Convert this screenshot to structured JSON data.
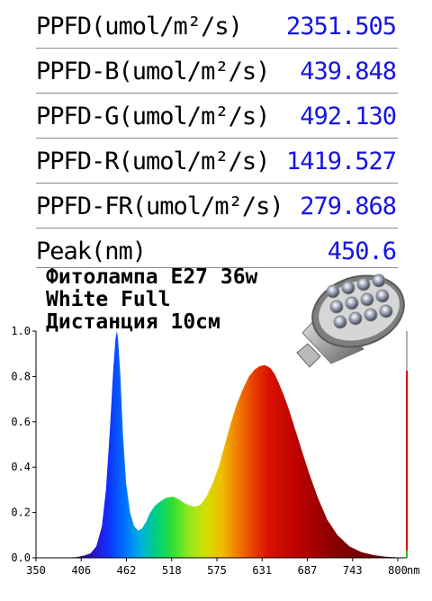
{
  "metrics": [
    {
      "label": "PPFD(umol/m²/s)",
      "value": "2351.505"
    },
    {
      "label": "PPFD-B(umol/m²/s)",
      "value": "439.848"
    },
    {
      "label": "PPFD-G(umol/m²/s)",
      "value": "492.130"
    },
    {
      "label": "PPFD-R(umol/m²/s)",
      "value": "1419.527"
    },
    {
      "label": "PPFD-FR(umol/m²/s)",
      "value": "279.868"
    },
    {
      "label": "Peak(nm)",
      "value": "450.6"
    }
  ],
  "caption": {
    "line1": "Фитолампа E27 36w",
    "line2": "White Full",
    "line3": "Дистанция 10см"
  },
  "lamp_image": {
    "icon": "par-led-bulb-icon",
    "led_count": 12
  },
  "colors": {
    "value_text": "#1414e6",
    "right_axis_top": "#b4b4b4",
    "right_axis_bottom": "#e00000",
    "end_marker": "#20c020"
  },
  "chart_data": {
    "type": "area",
    "xlabel": "",
    "x_unit": "nm",
    "ylabel": "",
    "xlim": [
      350,
      800
    ],
    "ylim": [
      0,
      1.0
    ],
    "x_ticks": [
      "350",
      "406",
      "462",
      "518",
      "575",
      "631",
      "687",
      "743",
      "800"
    ],
    "y_ticks": [
      "0.0",
      "0.2",
      "0.4",
      "0.6",
      "0.8",
      "1.0"
    ],
    "fill": "visible-spectrum-gradient",
    "x": [
      350,
      380,
      400,
      410,
      418,
      425,
      432,
      437,
      442,
      446,
      449,
      450.6,
      452,
      455,
      458,
      462,
      467,
      472,
      477,
      482,
      487,
      492,
      498,
      505,
      512,
      520,
      527,
      535,
      542,
      548,
      555,
      562,
      570,
      578,
      585,
      592,
      600,
      608,
      615,
      622,
      628,
      634,
      638,
      642,
      647,
      652,
      658,
      665,
      672,
      680,
      690,
      700,
      712,
      725,
      740,
      755,
      770,
      785,
      800
    ],
    "y": [
      0,
      0,
      0.003,
      0.01,
      0.02,
      0.05,
      0.14,
      0.3,
      0.57,
      0.83,
      0.97,
      1.0,
      0.97,
      0.8,
      0.55,
      0.33,
      0.2,
      0.14,
      0.12,
      0.13,
      0.16,
      0.2,
      0.23,
      0.25,
      0.265,
      0.27,
      0.26,
      0.24,
      0.23,
      0.225,
      0.235,
      0.27,
      0.33,
      0.41,
      0.5,
      0.59,
      0.68,
      0.75,
      0.8,
      0.83,
      0.845,
      0.85,
      0.845,
      0.835,
      0.81,
      0.77,
      0.72,
      0.65,
      0.57,
      0.48,
      0.37,
      0.27,
      0.17,
      0.1,
      0.05,
      0.025,
      0.012,
      0.005,
      0.002
    ]
  }
}
